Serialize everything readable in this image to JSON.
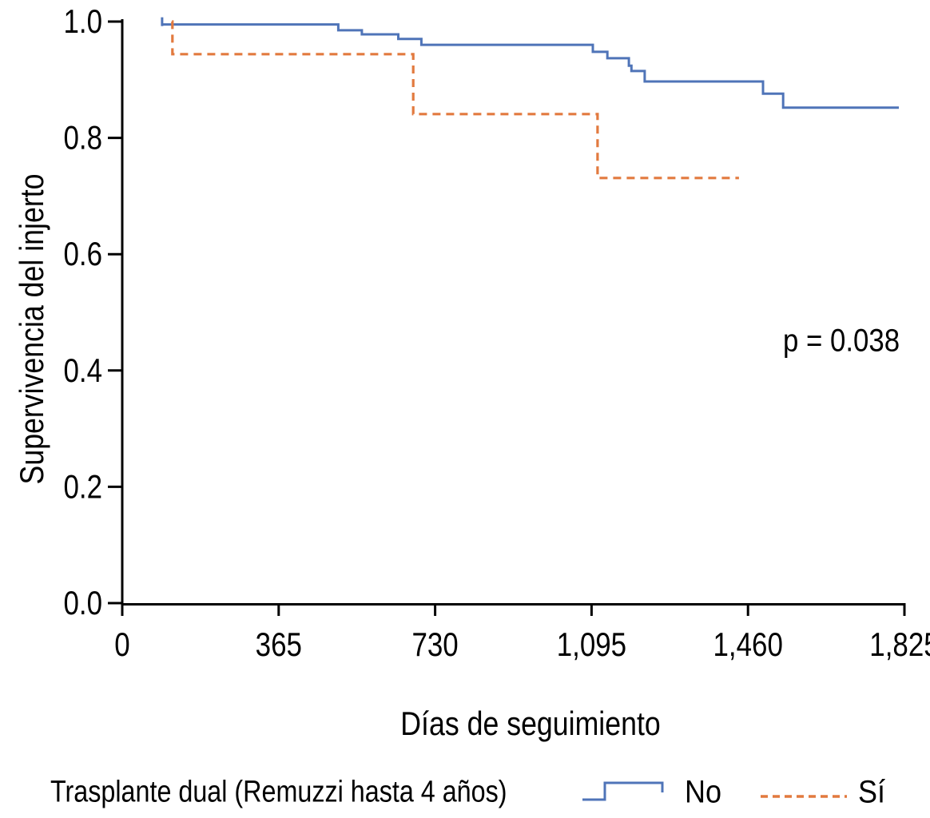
{
  "chart_data": {
    "type": "line",
    "subtype": "kaplan-meier-step-curve",
    "title": "",
    "xlabel": "Días de seguimiento",
    "ylabel": "Supervivencia del injerto",
    "xlim": [
      0,
      1825
    ],
    "ylim": [
      0.0,
      1.0
    ],
    "grid": false,
    "background_color": "#ffffff",
    "axis_color": "#000000",
    "x_ticks": [
      {
        "value": 0,
        "label": "0"
      },
      {
        "value": 365,
        "label": "365"
      },
      {
        "value": 730,
        "label": "730"
      },
      {
        "value": 1095,
        "label": "1,095"
      },
      {
        "value": 1460,
        "label": "1,460"
      },
      {
        "value": 1825,
        "label": "1,825"
      }
    ],
    "y_ticks": [
      {
        "value": 0.0,
        "label": "0.0"
      },
      {
        "value": 0.2,
        "label": "0.2"
      },
      {
        "value": 0.4,
        "label": "0.4"
      },
      {
        "value": 0.6,
        "label": "0.6"
      },
      {
        "value": 0.8,
        "label": "0.8"
      },
      {
        "value": 1.0,
        "label": "1.0"
      }
    ],
    "annotation": {
      "text": "p = 0.038"
    },
    "legend": {
      "title": "Trasplante dual (Remuzzi hasta 4 años)",
      "position": "bottom",
      "items": [
        {
          "key": "no",
          "label": "No",
          "color": "#4f74b8",
          "line_style": "solid-step"
        },
        {
          "key": "si",
          "label": "Sí",
          "color": "#e27a3f",
          "line_style": "dashed"
        }
      ]
    },
    "series": [
      {
        "name": "No",
        "key": "no",
        "color": "#4f74b8",
        "line_style": "solid",
        "step": true,
        "points": [
          [
            93,
            0.995
          ],
          [
            504,
            0.985
          ],
          [
            559,
            0.978
          ],
          [
            644,
            0.97
          ],
          [
            698,
            0.96
          ],
          [
            1098,
            0.948
          ],
          [
            1132,
            0.937
          ],
          [
            1182,
            0.924
          ],
          [
            1188,
            0.915
          ],
          [
            1219,
            0.897
          ],
          [
            1495,
            0.876
          ],
          [
            1542,
            0.852
          ],
          [
            1812,
            0.852
          ]
        ],
        "censor_marks": [
          [
            93,
            0.995
          ]
        ]
      },
      {
        "name": "Sí",
        "key": "si",
        "color": "#e27a3f",
        "line_style": "dashed",
        "step": true,
        "points": [
          [
            116,
            1.0
          ],
          [
            117,
            0.944
          ],
          [
            679,
            0.841
          ],
          [
            1109,
            0.731
          ],
          [
            1439,
            0.731
          ]
        ],
        "censor_marks": []
      }
    ]
  }
}
